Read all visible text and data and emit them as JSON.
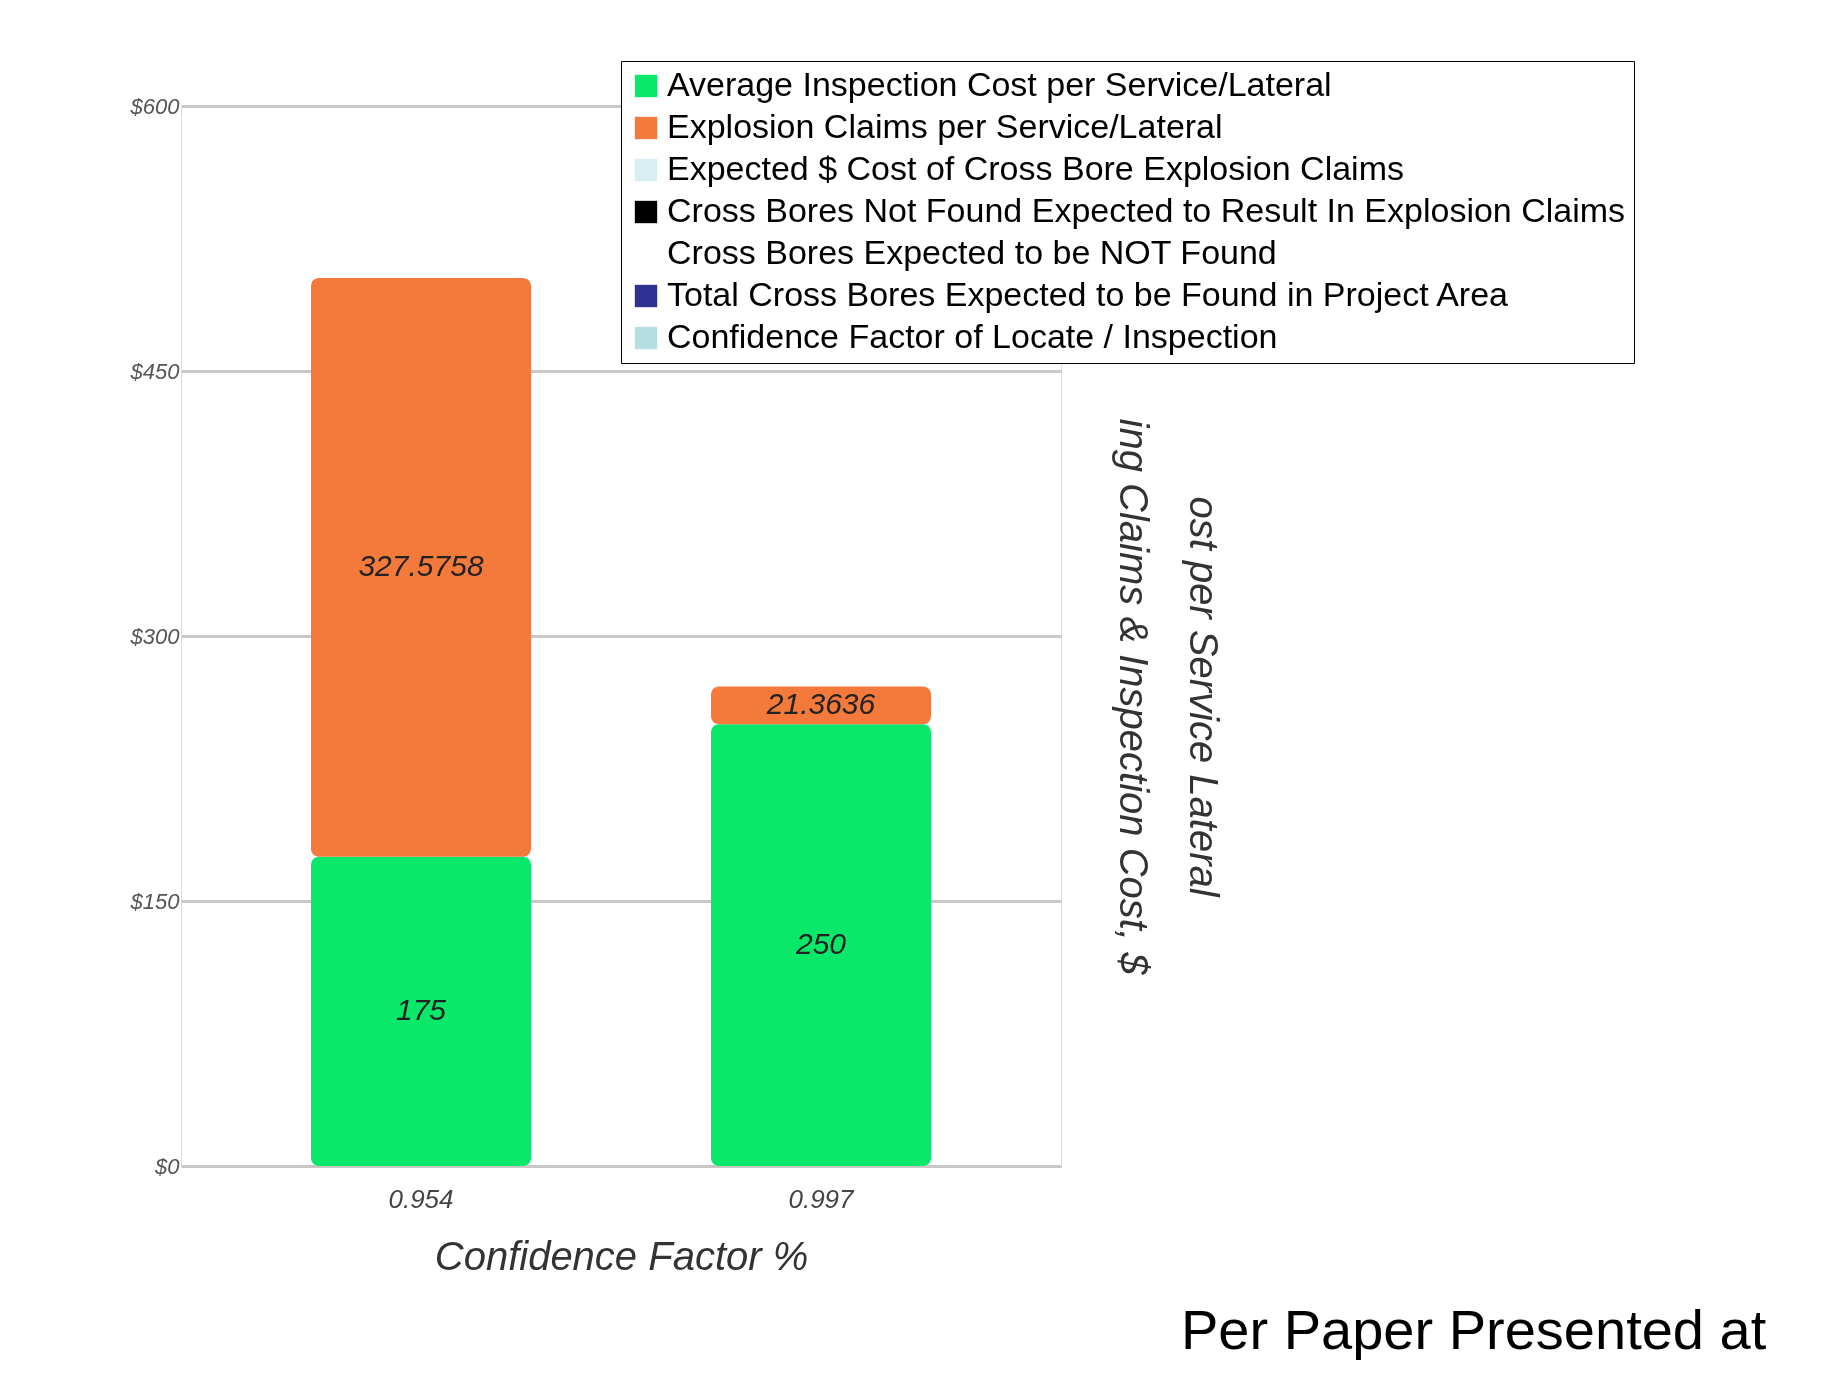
{
  "chart_data": {
    "type": "bar",
    "stacked": true,
    "categories": [
      "0.954",
      "0.997"
    ],
    "series": [
      {
        "name": "Average Inspection Cost per Service/Lateral",
        "color": "#0ae86a",
        "values": [
          175,
          250
        ]
      },
      {
        "name": "Explosion Claims per Service/Lateral",
        "color": "#f47a3c",
        "values": [
          327.5758,
          21.3636
        ]
      },
      {
        "name": "Expected $ Cost of Cross Bore Explosion Claims",
        "color": "#d8eef0",
        "values": [
          null,
          null
        ]
      },
      {
        "name": "Cross Bores Not Found Expected to Result In Explosion Claims",
        "color": "#000000",
        "values": [
          null,
          null
        ]
      },
      {
        "name": "Cross Bores Expected to be NOT Found",
        "values": [
          null,
          null
        ]
      },
      {
        "name": "Total Cross Bores Expected to be Found in Project Area",
        "color": "#2e3192",
        "values": [
          null,
          null
        ]
      },
      {
        "name": "Confidence Factor of Locate / Inspection",
        "color": "#b4dfe2",
        "values": [
          null,
          null
        ]
      }
    ],
    "xlabel": "Confidence Factor %",
    "ylabel": [
      "ost per Service Lateral",
      "ing Claims & Inspection Cost, $"
    ],
    "ylim": [
      0,
      600
    ],
    "yticks": [
      {
        "value": 0,
        "label": "$0"
      },
      {
        "value": 150,
        "label": "$150"
      },
      {
        "value": 300,
        "label": "$300"
      },
      {
        "value": 450,
        "label": "$450"
      },
      {
        "value": 600,
        "label": "$600"
      }
    ],
    "grid": "y",
    "legend": "top right",
    "data_labels": true,
    "annotations": [
      "Per Paper Presented at"
    ]
  }
}
